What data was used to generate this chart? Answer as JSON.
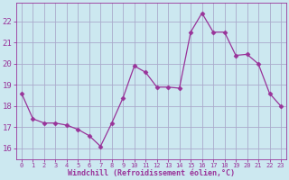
{
  "x": [
    0,
    1,
    2,
    3,
    4,
    5,
    6,
    7,
    8,
    9,
    10,
    11,
    12,
    13,
    14,
    15,
    16,
    17,
    18,
    19,
    20,
    21,
    22,
    23
  ],
  "y": [
    18.6,
    17.4,
    17.2,
    17.2,
    17.1,
    16.9,
    16.6,
    16.1,
    17.2,
    18.4,
    19.9,
    19.6,
    18.9,
    18.9,
    18.85,
    21.5,
    22.4,
    21.5,
    21.5,
    20.4,
    20.45,
    20.0,
    18.6,
    18.0
  ],
  "line_color": "#993399",
  "marker": "D",
  "markersize": 2.5,
  "bg_color": "#cce8f0",
  "grid_color": "#aaaacc",
  "xlabel": "Windchill (Refroidissement éolien,°C)",
  "yticks": [
    16,
    17,
    18,
    19,
    20,
    21,
    22
  ],
  "ylim": [
    15.5,
    22.9
  ],
  "xlim": [
    -0.5,
    23.5
  ],
  "xlabel_color": "#993399",
  "tick_color": "#993399",
  "xtick_fontsize": 5.0,
  "ytick_fontsize": 6.5,
  "xlabel_fontsize": 6.0
}
